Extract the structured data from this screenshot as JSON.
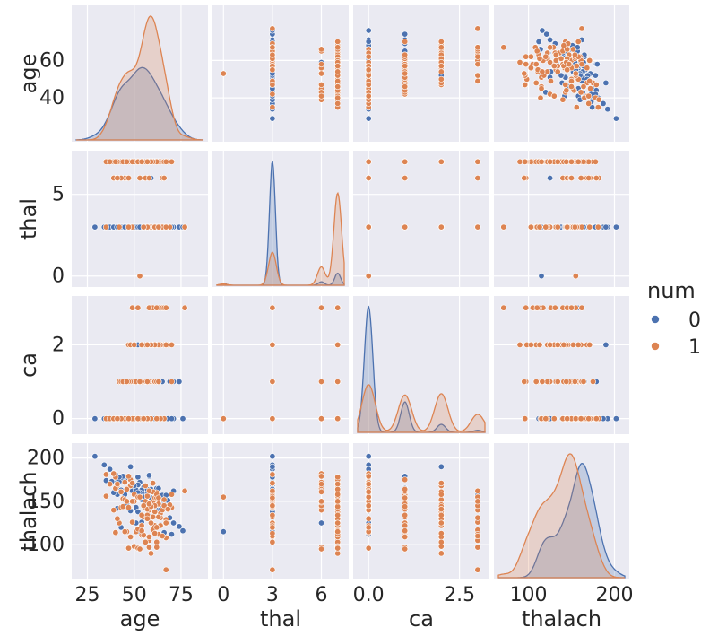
{
  "chart_data": {
    "type": "scatter",
    "variables": [
      "age",
      "thal",
      "ca",
      "thalach"
    ],
    "axis_labels": {
      "age": "age",
      "thal": "thal",
      "ca": "ca",
      "thalach": "thalach"
    },
    "hue": "num",
    "legend": {
      "title": "num",
      "placement": "right",
      "entries": [
        {
          "label": "0",
          "color": "#4c72b0"
        },
        {
          "label": "1",
          "color": "#dd8452"
        }
      ]
    },
    "colors": {
      "background": "#eaeaf2",
      "grid": "#ffffff",
      "class0": "#4c72b0",
      "class1": "#dd8452"
    },
    "grid": true,
    "diagonal_kind": "kde",
    "offdiagonal_kind": "scatter",
    "axes": {
      "age": {
        "range": [
          19,
          87
        ],
        "ticks": [
          25,
          50,
          75
        ],
        "row_ticks": [
          40,
          60
        ]
      },
      "thal": {
        "range": [
          -0.4,
          7.4
        ],
        "ticks": [
          0,
          3,
          6
        ],
        "row_ticks": [
          0,
          5
        ]
      },
      "ca": {
        "range": [
          -0.3,
          3.2
        ],
        "ticks": [
          0.0,
          2.5
        ],
        "tick_labels": [
          "0.0",
          "2.5"
        ],
        "row_ticks": [
          0,
          2
        ]
      },
      "thalach": {
        "range": [
          65,
          212
        ],
        "ticks": [
          100,
          150,
          200
        ],
        "row_ticks": [
          100,
          150,
          200
        ],
        "col_ticks": [
          100,
          200
        ]
      }
    },
    "kde_peaks": {
      "age": {
        "0": {
          "peak_x": 52,
          "secondary_x": 42
        },
        "1": {
          "peak_x": 58
        }
      },
      "thal": {
        "0": {
          "peaks": [
            3,
            7
          ]
        },
        "1": {
          "peaks": [
            3,
            7
          ]
        }
      },
      "ca": {
        "0": {
          "peak_x": 0
        },
        "1": {
          "peaks": [
            0,
            1,
            2,
            3
          ]
        }
      },
      "thalach": {
        "0": {
          "peak_x": 162
        },
        "1": {
          "peak_x": 142
        }
      }
    },
    "series": [
      {
        "name": "0",
        "points": [
          [
            63,
            7,
            2,
            132
          ],
          [
            56,
            3,
            1,
            158
          ],
          [
            64,
            3,
            0,
            123
          ],
          [
            58,
            3,
            2,
            133
          ],
          [
            29,
            3,
            0,
            202
          ],
          [
            41,
            3,
            0,
            172
          ],
          [
            44,
            3,
            0,
            173
          ],
          [
            52,
            3,
            0,
            178
          ],
          [
            57,
            3,
            0,
            148
          ],
          [
            42,
            3,
            0,
            173
          ],
          [
            35,
            3,
            0,
            174
          ],
          [
            45,
            3,
            0,
            175
          ],
          [
            44,
            3,
            0,
            177
          ],
          [
            54,
            3,
            1,
            126
          ],
          [
            51,
            3,
            0,
            125
          ],
          [
            38,
            3,
            0,
            173
          ],
          [
            34,
            3,
            0,
            192
          ],
          [
            37,
            3,
            0,
            187
          ],
          [
            40,
            6,
            0,
            181
          ],
          [
            48,
            3,
            0,
            139
          ],
          [
            49,
            3,
            0,
            171
          ],
          [
            46,
            3,
            1,
            144
          ],
          [
            49,
            3,
            0,
            162
          ],
          [
            48,
            3,
            0,
            168
          ],
          [
            58,
            3,
            0,
            160
          ],
          [
            43,
            3,
            0,
            163
          ],
          [
            39,
            3,
            0,
            182
          ],
          [
            50,
            3,
            0,
            158
          ],
          [
            53,
            3,
            0,
            172
          ],
          [
            54,
            3,
            0,
            152
          ],
          [
            57,
            3,
            0,
            163
          ],
          [
            59,
            6,
            0,
            125
          ],
          [
            60,
            3,
            0,
            150
          ],
          [
            59,
            7,
            0,
            164
          ],
          [
            62,
            3,
            0,
            165
          ],
          [
            65,
            3,
            1,
            157
          ],
          [
            66,
            3,
            0,
            150
          ],
          [
            45,
            7,
            0,
            158
          ],
          [
            68,
            3,
            0,
            151
          ],
          [
            69,
            3,
            1,
            131
          ],
          [
            71,
            3,
            0,
            162
          ],
          [
            71,
            3,
            1,
            125
          ],
          [
            74,
            3,
            1,
            121
          ],
          [
            76,
            3,
            0,
            116
          ],
          [
            52,
            3,
            0,
            169
          ],
          [
            55,
            3,
            0,
            166
          ],
          [
            41,
            3,
            0,
            158
          ],
          [
            56,
            3,
            1,
            165
          ],
          [
            51,
            7,
            0,
            163
          ],
          [
            54,
            3,
            0,
            163
          ],
          [
            50,
            3,
            0,
            168
          ],
          [
            47,
            3,
            0,
            143
          ],
          [
            60,
            3,
            0,
            171
          ],
          [
            46,
            3,
            1,
            147
          ],
          [
            53,
            3,
            1,
            160
          ],
          [
            62,
            3,
            0,
            160
          ],
          [
            58,
            3,
            1,
            179
          ],
          [
            44,
            3,
            0,
            179
          ],
          [
            58,
            3,
            0,
            180
          ],
          [
            63,
            3,
            1,
            140
          ],
          [
            66,
            3,
            0,
            114
          ],
          [
            59,
            7,
            1,
            154
          ],
          [
            61,
            3,
            0,
            145
          ],
          [
            42,
            3,
            0,
            178
          ],
          [
            43,
            3,
            0,
            120
          ],
          [
            57,
            3,
            0,
            158
          ],
          [
            64,
            3,
            0,
            140
          ],
          [
            51,
            3,
            0,
            143
          ],
          [
            67,
            7,
            3,
            157
          ],
          [
            55,
            3,
            0,
            155
          ],
          [
            52,
            7,
            1,
            160
          ],
          [
            45,
            3,
            0,
            115
          ],
          [
            70,
            3,
            0,
            112
          ],
          [
            65,
            3,
            0,
            145
          ],
          [
            48,
            3,
            2,
            190
          ],
          [
            63,
            3,
            1,
            165
          ],
          [
            39,
            3,
            0,
            160
          ],
          [
            52,
            3,
            2,
            138
          ],
          [
            41,
            3,
            0,
            142
          ],
          [
            57,
            3,
            0,
            164
          ],
          [
            53,
            0,
            0,
            115
          ],
          [
            53,
            3,
            0,
            155
          ]
        ]
      },
      {
        "name": "1",
        "points": [
          [
            67,
            3,
            3,
            108
          ],
          [
            67,
            7,
            2,
            129
          ],
          [
            62,
            3,
            2,
            160
          ],
          [
            63,
            7,
            1,
            147
          ],
          [
            53,
            7,
            0,
            155
          ],
          [
            56,
            6,
            0,
            142
          ],
          [
            48,
            7,
            2,
            168
          ],
          [
            58,
            7,
            0,
            140
          ],
          [
            58,
            7,
            3,
            105
          ],
          [
            60,
            7,
            2,
            171
          ],
          [
            40,
            7,
            0,
            114
          ],
          [
            60,
            7,
            1,
            150
          ],
          [
            64,
            7,
            2,
            136
          ],
          [
            43,
            7,
            0,
            143
          ],
          [
            57,
            7,
            1,
            149
          ],
          [
            55,
            7,
            1,
            132
          ],
          [
            65,
            6,
            3,
            140
          ],
          [
            61,
            7,
            1,
            145
          ],
          [
            58,
            3,
            1,
            148
          ],
          [
            50,
            7,
            1,
            150
          ],
          [
            44,
            7,
            0,
            153
          ],
          [
            60,
            7,
            2,
            161
          ],
          [
            54,
            7,
            2,
            111
          ],
          [
            50,
            7,
            0,
            158
          ],
          [
            41,
            7,
            0,
            168
          ],
          [
            49,
            7,
            3,
            126
          ],
          [
            61,
            7,
            1,
            154
          ],
          [
            59,
            7,
            0,
            144
          ],
          [
            62,
            3,
            0,
            154
          ],
          [
            66,
            3,
            2,
            152
          ],
          [
            66,
            6,
            0,
            145
          ],
          [
            52,
            7,
            3,
            155
          ],
          [
            48,
            7,
            1,
            175
          ],
          [
            45,
            7,
            0,
            152
          ],
          [
            57,
            7,
            2,
            130
          ],
          [
            49,
            3,
            0,
            171
          ],
          [
            70,
            7,
            1,
            143
          ],
          [
            57,
            7,
            1,
            141
          ],
          [
            47,
            3,
            2,
            143
          ],
          [
            35,
            7,
            0,
            156
          ],
          [
            61,
            7,
            2,
            122
          ],
          [
            69,
            3,
            2,
            146
          ],
          [
            62,
            7,
            2,
            103
          ],
          [
            51,
            7,
            1,
            115
          ],
          [
            62,
            7,
            1,
            158
          ],
          [
            59,
            3,
            2,
            144
          ],
          [
            52,
            7,
            0,
            118
          ],
          [
            55,
            7,
            1,
            111
          ],
          [
            48,
            7,
            2,
            109
          ],
          [
            60,
            7,
            3,
            117
          ],
          [
            42,
            3,
            1,
            125
          ],
          [
            56,
            6,
            0,
            149
          ],
          [
            46,
            7,
            1,
            115
          ],
          [
            67,
            3,
            2,
            125
          ],
          [
            40,
            6,
            0,
            165
          ],
          [
            77,
            3,
            3,
            162
          ],
          [
            54,
            7,
            1,
            122
          ],
          [
            64,
            7,
            2,
            131
          ],
          [
            43,
            7,
            1,
            161
          ],
          [
            39,
            7,
            0,
            140
          ],
          [
            46,
            6,
            0,
            150
          ],
          [
            58,
            3,
            1,
            109
          ],
          [
            63,
            7,
            3,
            112
          ],
          [
            47,
            7,
            1,
            96
          ],
          [
            41,
            7,
            0,
            130
          ],
          [
            61,
            7,
            2,
            138
          ],
          [
            54,
            7,
            1,
            116
          ],
          [
            64,
            3,
            0,
            122
          ],
          [
            56,
            6,
            0,
            168
          ],
          [
            50,
            7,
            2,
            98
          ],
          [
            45,
            7,
            0,
            115
          ],
          [
            65,
            3,
            3,
            110
          ],
          [
            62,
            7,
            3,
            97
          ],
          [
            56,
            3,
            2,
            103
          ],
          [
            56,
            7,
            0,
            150
          ],
          [
            45,
            6,
            0,
            172
          ],
          [
            58,
            7,
            1,
            162
          ],
          [
            35,
            3,
            0,
            181
          ],
          [
            57,
            3,
            0,
            156
          ],
          [
            63,
            3,
            2,
            132
          ],
          [
            58,
            7,
            1,
            147
          ],
          [
            66,
            7,
            3,
            145
          ],
          [
            59,
            7,
            2,
            90
          ],
          [
            62,
            3,
            0,
            120
          ],
          [
            68,
            7,
            2,
            141
          ],
          [
            58,
            7,
            3,
            131
          ],
          [
            60,
            7,
            2,
            132
          ],
          [
            40,
            7,
            0,
            178
          ],
          [
            61,
            3,
            2,
            113
          ],
          [
            44,
            7,
            1,
            144
          ],
          [
            37,
            7,
            0,
            170
          ],
          [
            53,
            0,
            0,
            155
          ],
          [
            58,
            6,
            1,
            97
          ],
          [
            63,
            3,
            1,
            154
          ],
          [
            59,
            7,
            2,
            125
          ],
          [
            67,
            3,
            3,
            71
          ],
          [
            52,
            7,
            0,
            96
          ],
          [
            39,
            6,
            0,
            182
          ],
          [
            47,
            6,
            0,
            179
          ],
          [
            43,
            6,
            0,
            161
          ],
          [
            46,
            7,
            1,
            164
          ],
          [
            57,
            3,
            1,
            134
          ],
          [
            55,
            3,
            0,
            145
          ],
          [
            70,
            7,
            2,
            158
          ],
          [
            57,
            7,
            2,
            130
          ],
          [
            67,
            7,
            2,
            125
          ],
          [
            53,
            6,
            1,
            95
          ],
          [
            54,
            7,
            2,
            134
          ],
          [
            49,
            7,
            3,
            150
          ],
          [
            41,
            6,
            0,
            170
          ]
        ]
      }
    ]
  }
}
